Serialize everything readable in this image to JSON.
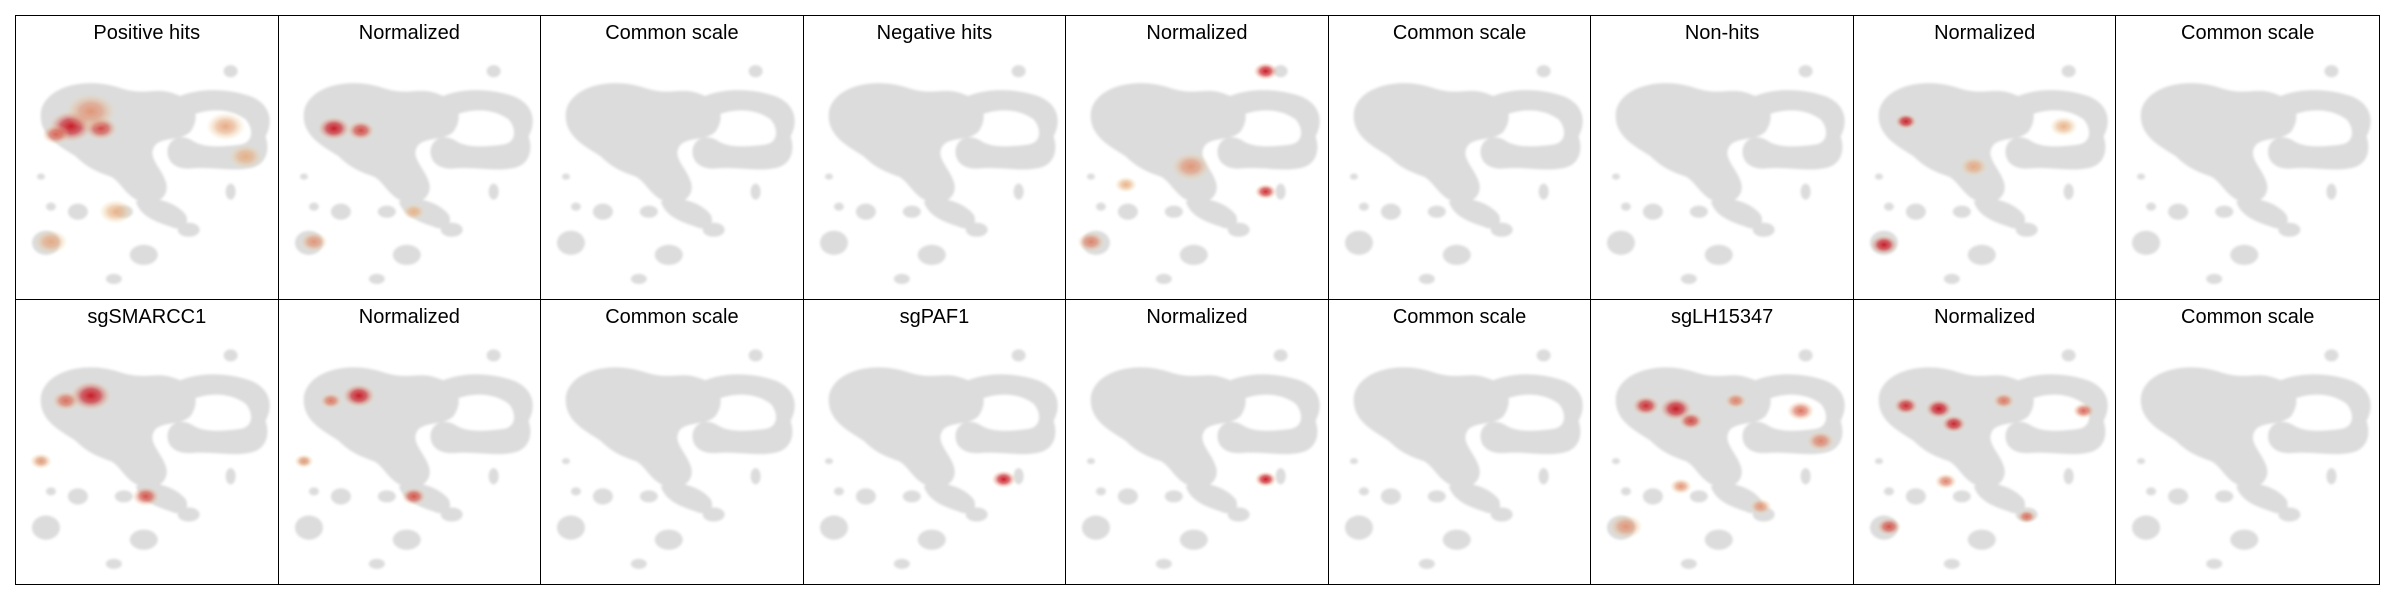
{
  "panels": [
    {
      "title": "Positive hits",
      "hotspots": [
        {
          "cx": 55,
          "cy": 110,
          "r": 16,
          "i": 1.0
        },
        {
          "cx": 85,
          "cy": 112,
          "r": 12,
          "i": 0.75
        },
        {
          "cx": 40,
          "cy": 118,
          "r": 10,
          "i": 0.6
        },
        {
          "cx": 75,
          "cy": 95,
          "r": 18,
          "i": 0.35
        },
        {
          "cx": 210,
          "cy": 110,
          "r": 14,
          "i": 0.25
        },
        {
          "cx": 230,
          "cy": 140,
          "r": 12,
          "i": 0.22
        },
        {
          "cx": 35,
          "cy": 225,
          "r": 12,
          "i": 0.25
        },
        {
          "cx": 100,
          "cy": 195,
          "r": 12,
          "i": 0.2
        }
      ]
    },
    {
      "title": "Normalized",
      "hotspots": [
        {
          "cx": 55,
          "cy": 112,
          "r": 12,
          "i": 1.0
        },
        {
          "cx": 82,
          "cy": 114,
          "r": 10,
          "i": 0.75
        },
        {
          "cx": 35,
          "cy": 225,
          "r": 10,
          "i": 0.35
        },
        {
          "cx": 135,
          "cy": 195,
          "r": 8,
          "i": 0.2
        }
      ]
    },
    {
      "title": "Common scale",
      "hotspots": []
    },
    {
      "title": "Negative hits",
      "hotspots": []
    },
    {
      "title": "Normalized",
      "hotspots": [
        {
          "cx": 200,
          "cy": 55,
          "r": 9,
          "i": 1.0
        },
        {
          "cx": 200,
          "cy": 175,
          "r": 8,
          "i": 0.9
        },
        {
          "cx": 125,
          "cy": 150,
          "r": 14,
          "i": 0.35
        },
        {
          "cx": 25,
          "cy": 225,
          "r": 10,
          "i": 0.45
        },
        {
          "cx": 60,
          "cy": 168,
          "r": 8,
          "i": 0.2
        }
      ]
    },
    {
      "title": "Common scale",
      "hotspots": []
    },
    {
      "title": "Non-hits",
      "hotspots": []
    },
    {
      "title": "Normalized",
      "hotspots": [
        {
          "cx": 52,
          "cy": 105,
          "r": 8,
          "i": 0.95
        },
        {
          "cx": 30,
          "cy": 228,
          "r": 10,
          "i": 1.0
        },
        {
          "cx": 120,
          "cy": 150,
          "r": 10,
          "i": 0.25
        },
        {
          "cx": 210,
          "cy": 110,
          "r": 10,
          "i": 0.2
        }
      ]
    },
    {
      "title": "Common scale",
      "hotspots": []
    },
    {
      "title": "sgSMARCC1",
      "hotspots": [
        {
          "cx": 75,
          "cy": 95,
          "r": 15,
          "i": 1.0
        },
        {
          "cx": 50,
          "cy": 100,
          "r": 10,
          "i": 0.55
        },
        {
          "cx": 130,
          "cy": 195,
          "r": 10,
          "i": 0.7
        },
        {
          "cx": 25,
          "cy": 160,
          "r": 8,
          "i": 0.3
        }
      ]
    },
    {
      "title": "Normalized",
      "hotspots": [
        {
          "cx": 80,
          "cy": 95,
          "r": 12,
          "i": 1.0
        },
        {
          "cx": 52,
          "cy": 100,
          "r": 8,
          "i": 0.5
        },
        {
          "cx": 135,
          "cy": 195,
          "r": 9,
          "i": 0.7
        },
        {
          "cx": 25,
          "cy": 160,
          "r": 7,
          "i": 0.3
        }
      ]
    },
    {
      "title": "Common scale",
      "hotspots": []
    },
    {
      "title": "sgPAF1",
      "hotspots": [
        {
          "cx": 200,
          "cy": 178,
          "r": 9,
          "i": 1.0
        }
      ]
    },
    {
      "title": "Normalized",
      "hotspots": [
        {
          "cx": 200,
          "cy": 178,
          "r": 8,
          "i": 1.0
        }
      ]
    },
    {
      "title": "Common scale",
      "hotspots": []
    },
    {
      "title": "sgLH15347",
      "hotspots": [
        {
          "cx": 55,
          "cy": 105,
          "r": 10,
          "i": 0.9
        },
        {
          "cx": 85,
          "cy": 108,
          "r": 12,
          "i": 1.0
        },
        {
          "cx": 100,
          "cy": 120,
          "r": 9,
          "i": 0.75
        },
        {
          "cx": 145,
          "cy": 100,
          "r": 8,
          "i": 0.45
        },
        {
          "cx": 210,
          "cy": 110,
          "r": 10,
          "i": 0.55
        },
        {
          "cx": 230,
          "cy": 140,
          "r": 10,
          "i": 0.45
        },
        {
          "cx": 35,
          "cy": 225,
          "r": 12,
          "i": 0.35
        },
        {
          "cx": 90,
          "cy": 185,
          "r": 8,
          "i": 0.35
        },
        {
          "cx": 170,
          "cy": 205,
          "r": 8,
          "i": 0.35
        }
      ]
    },
    {
      "title": "Normalized",
      "hotspots": [
        {
          "cx": 52,
          "cy": 105,
          "r": 9,
          "i": 0.9
        },
        {
          "cx": 85,
          "cy": 108,
          "r": 10,
          "i": 1.0
        },
        {
          "cx": 100,
          "cy": 123,
          "r": 9,
          "i": 0.95
        },
        {
          "cx": 150,
          "cy": 100,
          "r": 8,
          "i": 0.5
        },
        {
          "cx": 230,
          "cy": 110,
          "r": 8,
          "i": 0.6
        },
        {
          "cx": 35,
          "cy": 225,
          "r": 9,
          "i": 0.7
        },
        {
          "cx": 92,
          "cy": 180,
          "r": 8,
          "i": 0.45
        },
        {
          "cx": 173,
          "cy": 215,
          "r": 7,
          "i": 0.55
        }
      ]
    },
    {
      "title": "Common scale",
      "hotspots": []
    }
  ],
  "colors": {
    "background": "#ffffff",
    "cell_shape": "#dcdcdc",
    "density_low": "#efd9a0",
    "density_high": "#c8141e",
    "border": "#000000"
  }
}
